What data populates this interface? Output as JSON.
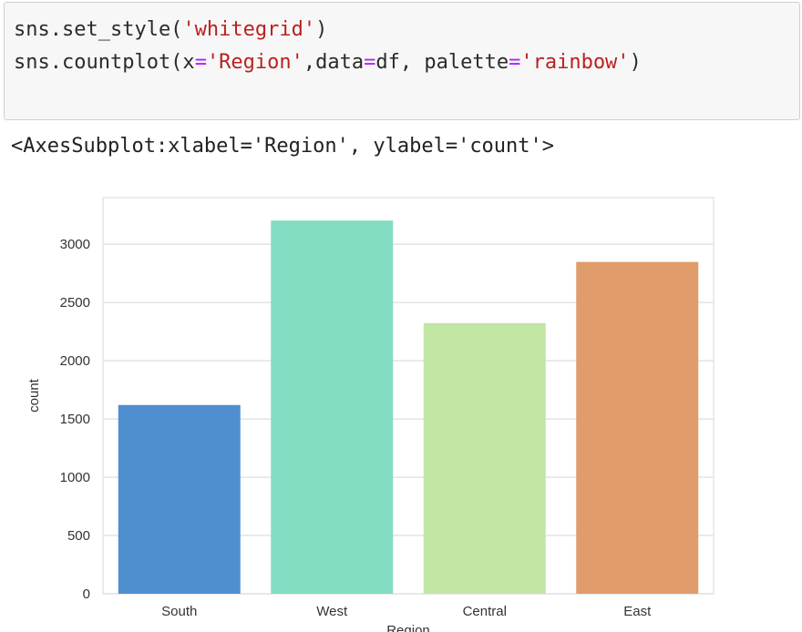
{
  "code_cell": {
    "line1": {
      "pre": "sns.set_style(",
      "str": "'whitegrid'",
      "post": ")"
    },
    "line2": {
      "a": "sns.countplot(x",
      "eq1": "=",
      "s1": "'Region'",
      "b": ",data",
      "eq2": "=",
      "c": "df, palette",
      "eq3": "=",
      "s2": "'rainbow'",
      "d": ")"
    }
  },
  "output_repr": "<AxesSubplot:xlabel='Region', ylabel='count'>",
  "chart_data": {
    "type": "bar",
    "categories": [
      "South",
      "West",
      "Central",
      "East"
    ],
    "values": [
      1620,
      3203,
      2323,
      2848
    ],
    "colors": [
      "#4f8fd0",
      "#84dcc3",
      "#c2e6a4",
      "#e09c6a"
    ],
    "ylabel": "count",
    "xlabel": "Region",
    "ylim": [
      0,
      3400
    ],
    "yticks": [
      0,
      500,
      1000,
      1500,
      2000,
      2500,
      3000
    ],
    "grid": true,
    "style": "whitegrid"
  }
}
